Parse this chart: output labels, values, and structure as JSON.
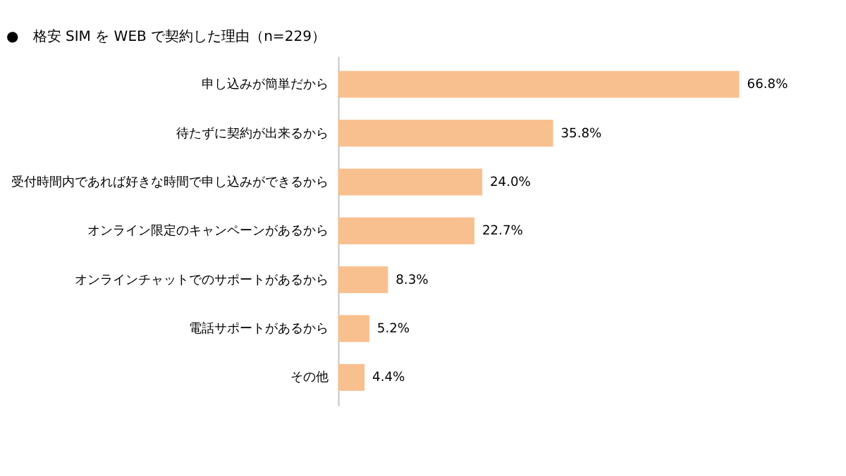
{
  "chart_data": {
    "type": "bar",
    "orientation": "horizontal",
    "title": "●　格安 SIM を WEB で契約した理由（n=229）",
    "categories": [
      "申し込みが簡単だから",
      "待たずに契約が出来るから",
      "受付時間内であれば好きな時間で申し込みができるから",
      "オンライン限定のキャンペーンがあるから",
      "オンラインチャットでのサポートがあるから",
      "電話サポートがあるから",
      "その他"
    ],
    "values": [
      66.8,
      35.8,
      24.0,
      22.7,
      8.3,
      5.2,
      4.4
    ],
    "value_labels": [
      "66.8%",
      "35.8%",
      "24.0%",
      "22.7%",
      "8.3%",
      "5.2%",
      "4.4%"
    ],
    "color": "#f9c08f"
  }
}
